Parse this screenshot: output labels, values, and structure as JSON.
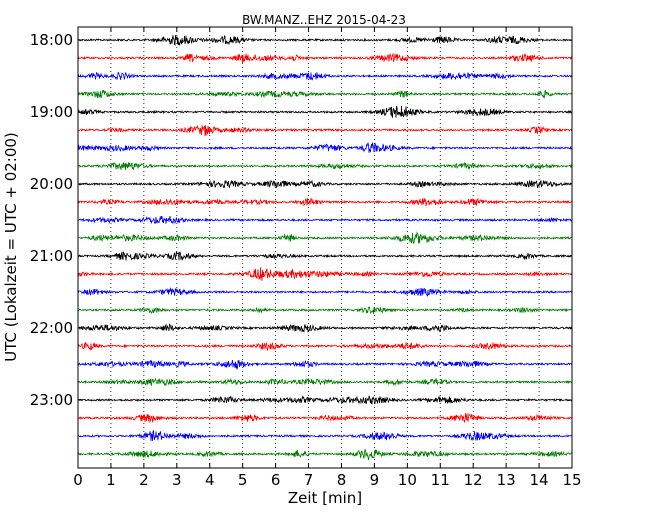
{
  "chart_data": {
    "type": "line",
    "title": "BW.MANZ..EHZ 2015-04-23",
    "xlabel": "Zeit  [min]",
    "ylabel": "UTC (Lokalzeit = UTC + 02:00)",
    "xlim": [
      0,
      15
    ],
    "x_ticks": [
      "0",
      "1",
      "2",
      "3",
      "4",
      "5",
      "6",
      "7",
      "8",
      "9",
      "10",
      "11",
      "12",
      "13",
      "14",
      "15"
    ],
    "y_ticks": [
      "18:00",
      "19:00",
      "20:00",
      "21:00",
      "22:00",
      "23:00"
    ],
    "grid": "vertical-dotted",
    "trace_colors": [
      "#000000",
      "#ff0000",
      "#0000ff",
      "#008000"
    ],
    "trace_minutes_per_row": 15,
    "row_start_times": [
      "18:00",
      "18:15",
      "18:30",
      "18:45",
      "19:00",
      "19:15",
      "19:30",
      "19:45",
      "20:00",
      "20:15",
      "20:30",
      "20:45",
      "21:00",
      "21:15",
      "21:30",
      "21:45",
      "22:00",
      "22:15",
      "22:30",
      "22:45",
      "23:00",
      "23:15",
      "23:30",
      "23:45"
    ]
  }
}
